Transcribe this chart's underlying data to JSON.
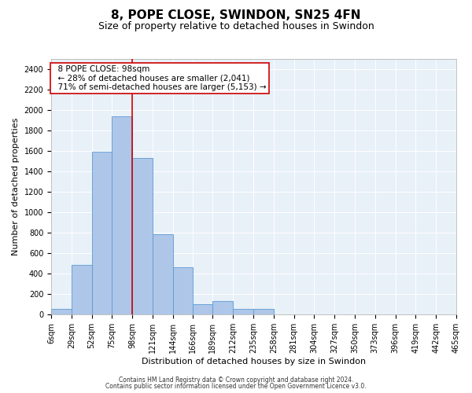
{
  "title": "8, POPE CLOSE, SWINDON, SN25 4FN",
  "subtitle": "Size of property relative to detached houses in Swindon",
  "xlabel": "Distribution of detached houses by size in Swindon",
  "ylabel": "Number of detached properties",
  "footnote1": "Contains HM Land Registry data © Crown copyright and database right 2024.",
  "footnote2": "Contains public sector information licensed under the Open Government Licence v3.0.",
  "annotation_line1": "8 POPE CLOSE: 98sqm",
  "annotation_line2": "← 28% of detached houses are smaller (2,041)",
  "annotation_line3": "71% of semi-detached houses are larger (5,153) →",
  "property_size": 98,
  "bar_color": "#aec6e8",
  "bar_edge_color": "#5b9bd5",
  "redline_color": "#cc0000",
  "background_color": "#e8f0f8",
  "categories": [
    "6sqm",
    "29sqm",
    "52sqm",
    "75sqm",
    "98sqm",
    "121sqm",
    "144sqm",
    "166sqm",
    "189sqm",
    "212sqm",
    "235sqm",
    "258sqm",
    "281sqm",
    "304sqm",
    "327sqm",
    "350sqm",
    "373sqm",
    "396sqm",
    "419sqm",
    "442sqm",
    "465sqm"
  ],
  "bin_edges": [
    6,
    29,
    52,
    75,
    98,
    121,
    144,
    166,
    189,
    212,
    235,
    258,
    281,
    304,
    327,
    350,
    373,
    396,
    419,
    442,
    465
  ],
  "bar_heights": [
    60,
    490,
    1590,
    1940,
    1530,
    790,
    460,
    100,
    130,
    55,
    55,
    0,
    0,
    0,
    0,
    0,
    0,
    0,
    0,
    0
  ],
  "ylim": [
    0,
    2500
  ],
  "yticks": [
    0,
    200,
    400,
    600,
    800,
    1000,
    1200,
    1400,
    1600,
    1800,
    2000,
    2200,
    2400
  ],
  "grid_color": "#ffffff",
  "title_fontsize": 11,
  "subtitle_fontsize": 9,
  "axis_label_fontsize": 8,
  "tick_fontsize": 7,
  "annotation_fontsize": 7.5,
  "footnote_fontsize": 5.5
}
